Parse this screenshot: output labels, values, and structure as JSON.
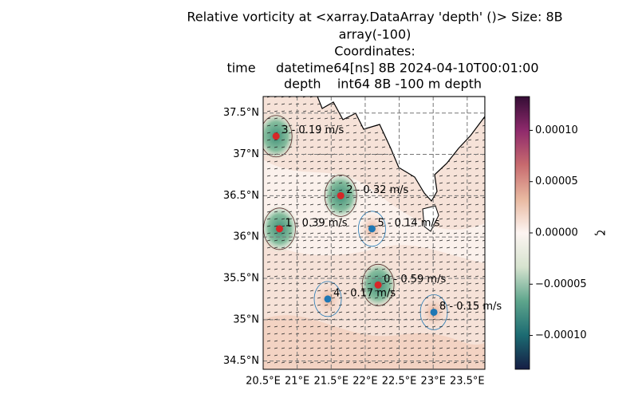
{
  "title": [
    "Relative vorticity at <xarray.DataArray 'depth' ()> Size: 8B",
    "array(-100)",
    "Coordinates:",
    "time     datetime64[ns] 8B 2024-04-10T00:01:00",
    "depth    int64 8B -100 m depth"
  ],
  "map": {
    "xlim": [
      20.5,
      23.76
    ],
    "ylim": [
      34.4,
      37.7
    ],
    "grid": true,
    "xticks": [
      {
        "value": 20.5,
        "label": "20.5°E"
      },
      {
        "value": 21,
        "label": "21°E"
      },
      {
        "value": 21.5,
        "label": "21.5°E"
      },
      {
        "value": 22,
        "label": "22°E"
      },
      {
        "value": 22.5,
        "label": "22.5°E"
      },
      {
        "value": 23,
        "label": "23°E"
      },
      {
        "value": 23.5,
        "label": "23.5°E"
      }
    ],
    "yticks": [
      {
        "value": 34.5,
        "label": "34.5°N"
      },
      {
        "value": 35,
        "label": "35°N"
      },
      {
        "value": 35.5,
        "label": "35.5°N"
      },
      {
        "value": 36,
        "label": "36°N"
      },
      {
        "value": 36.5,
        "label": "36.5°N"
      },
      {
        "value": 37,
        "label": "37°N"
      },
      {
        "value": 37.5,
        "label": "37.5°N"
      }
    ],
    "eddies": [
      {
        "label": "0 - 0.59 m/s",
        "lon": 22.19,
        "lat": 35.42,
        "color": "#d62728"
      },
      {
        "label": "1 - 0.39 m/s",
        "lon": 20.74,
        "lat": 36.1,
        "color": "#d62728"
      },
      {
        "label": "2 - 0.32 m/s",
        "lon": 21.64,
        "lat": 36.5,
        "color": "#d62728"
      },
      {
        "label": "3 - 0.19 m/s",
        "lon": 20.69,
        "lat": 37.22,
        "color": "#d62728"
      },
      {
        "label": "4 - 0.17 m/s",
        "lon": 21.45,
        "lat": 35.25,
        "color": "#1f77b4"
      },
      {
        "label": "5 - 0.14 m/s",
        "lon": 22.1,
        "lat": 36.1,
        "color": "#1f77b4"
      },
      {
        "label": "8 - 0.15 m/s",
        "lon": 23.01,
        "lat": 35.09,
        "color": "#1f77b4"
      }
    ]
  },
  "colorbar": {
    "label": "ζ",
    "lim": [
      -0.000133,
      0.000133
    ],
    "colormap": [
      "#151d44",
      "#1c6b72",
      "#5ea58c",
      "#d6e3cf",
      "#fdf5f2",
      "#e8b8a0",
      "#c76a6e",
      "#8f2a6c",
      "#340d35"
    ],
    "ticks": [
      {
        "value": -0.0001,
        "label": "−0.00010"
      },
      {
        "value": -5e-05,
        "label": "−0.00005"
      },
      {
        "value": 0,
        "label": "0.00000"
      },
      {
        "value": 5e-05,
        "label": "0.00005"
      },
      {
        "value": 0.0001,
        "label": "0.00010"
      }
    ]
  }
}
